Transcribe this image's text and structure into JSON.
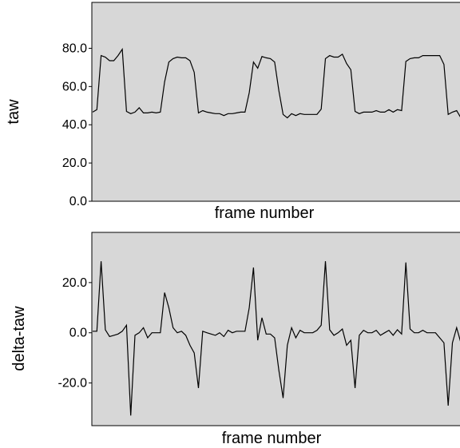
{
  "chart_data": [
    {
      "type": "line",
      "xlabel": "frame number",
      "ylabel": "taw",
      "xlim": [
        0,
        121
      ],
      "ylim": [
        0,
        104
      ],
      "yticks": [
        "0.0",
        "20.0",
        "40.0",
        "60.0",
        "80.0"
      ],
      "ytick_values": [
        0,
        20,
        40,
        60,
        80
      ],
      "grid": false,
      "series": [
        {
          "values": [
            46.6,
            47.9,
            76.2,
            75.4,
            73.5,
            73.5,
            76.2,
            79.5,
            47.0,
            45.8,
            46.6,
            48.9,
            46.2,
            46.2,
            46.6,
            46.2,
            46.6,
            62.4,
            72.8,
            74.6,
            75.4,
            75.0,
            75.0,
            73.5,
            67.4,
            46.2,
            47.4,
            46.6,
            46.2,
            45.8,
            45.8,
            44.8,
            45.8,
            45.8,
            46.2,
            46.6,
            46.6,
            56.8,
            72.8,
            69.6,
            75.7,
            75.0,
            74.6,
            72.8,
            57.8,
            45.4,
            43.6,
            45.8,
            44.8,
            45.8,
            45.4,
            45.4,
            45.4,
            45.4,
            48.2,
            74.6,
            76.2,
            75.4,
            75.4,
            76.9,
            72.0,
            68.8,
            47.0,
            45.8,
            46.6,
            46.6,
            46.6,
            47.4,
            46.6,
            46.6,
            47.9,
            46.6,
            47.9,
            47.4,
            73.1,
            74.6,
            75.0,
            75.0,
            76.2,
            76.2,
            76.2,
            76.2,
            76.2,
            71.6,
            45.4,
            46.6,
            47.4,
            43.6,
            42.8
          ]
        }
      ]
    },
    {
      "type": "line",
      "xlabel": "frame number",
      "ylabel": "delta-taw",
      "xlim": [
        0,
        121
      ],
      "ylim": [
        -37,
        40
      ],
      "yticks": [
        "-20.0",
        "0.0",
        "20.0"
      ],
      "ytick_values": [
        -20,
        0,
        20
      ],
      "grid": false,
      "series": [
        {
          "values": [
            0.6,
            0.6,
            28.5,
            1.2,
            -1.5,
            -1.0,
            -0.5,
            0.6,
            3.0,
            -33.0,
            -1.0,
            0.0,
            2.0,
            -2.0,
            0.0,
            0.0,
            0.0,
            16.0,
            10.0,
            2.0,
            0.0,
            0.6,
            -1.0,
            -5.0,
            -8.0,
            -22.0,
            0.6,
            0.0,
            -0.5,
            -1.0,
            0.0,
            -1.5,
            1.0,
            0.0,
            0.6,
            0.6,
            0.6,
            10.0,
            26.0,
            -3.0,
            6.0,
            -0.5,
            -0.5,
            -2.0,
            -15.0,
            -26.0,
            -5.0,
            2.0,
            -2.0,
            1.0,
            0.0,
            0.0,
            0.0,
            1.0,
            3.0,
            28.5,
            1.2,
            -1.0,
            0.0,
            1.5,
            -5.0,
            -3.0,
            -22.0,
            -1.0,
            1.0,
            0.0,
            0.0,
            1.0,
            -1.0,
            0.0,
            1.0,
            -1.0,
            1.2,
            -0.5,
            28.0,
            1.5,
            0.0,
            0.0,
            1.0,
            0.0,
            0.0,
            0.0,
            -2.0,
            -4.0,
            -29.0,
            -4.0,
            2.0,
            -4.0,
            -4.0
          ]
        }
      ]
    }
  ]
}
